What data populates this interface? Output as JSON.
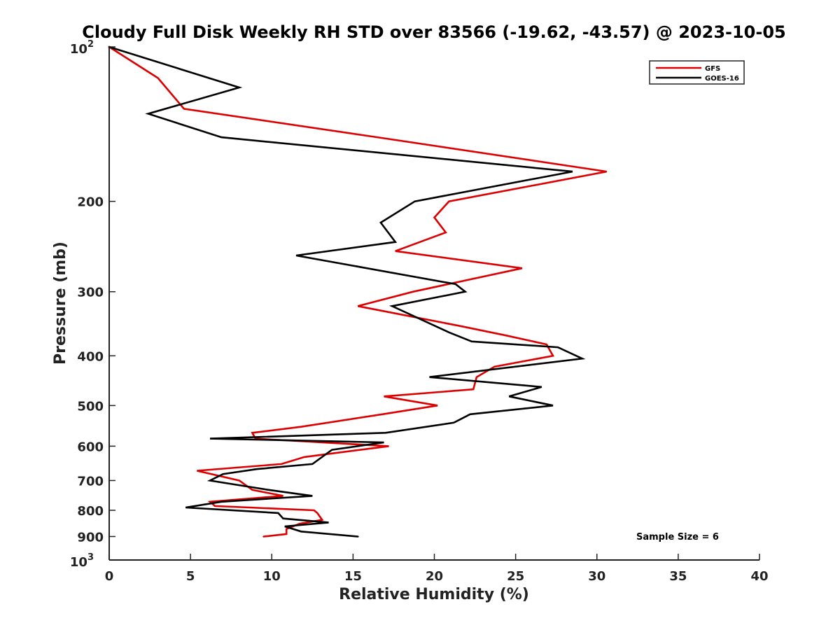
{
  "chart_data": {
    "type": "line",
    "title": "Cloudy Full Disk Weekly RH STD over 83566 (-19.62, -43.57) @ 2023-10-05",
    "xlabel": "Relative Humidity (%)",
    "ylabel": "Pressure (mb)",
    "xlim": [
      0,
      40
    ],
    "ylim": [
      100,
      1000
    ],
    "y_scale": "log",
    "y_reversed": true,
    "grid": false,
    "legend_position": "top-right",
    "x_ticks": [
      {
        "value": 0,
        "label": "0"
      },
      {
        "value": 5,
        "label": "5"
      },
      {
        "value": 10,
        "label": "10"
      },
      {
        "value": 15,
        "label": "15"
      },
      {
        "value": 20,
        "label": "20"
      },
      {
        "value": 25,
        "label": "25"
      },
      {
        "value": 30,
        "label": "30"
      },
      {
        "value": 35,
        "label": "35"
      },
      {
        "value": 40,
        "label": "40"
      }
    ],
    "y_ticks": [
      {
        "value": 100,
        "label": "",
        "base": "10",
        "exp": "2"
      },
      {
        "value": 200,
        "label": "200"
      },
      {
        "value": 300,
        "label": "300"
      },
      {
        "value": 400,
        "label": "400"
      },
      {
        "value": 500,
        "label": "500"
      },
      {
        "value": 600,
        "label": "600"
      },
      {
        "value": 700,
        "label": "700"
      },
      {
        "value": 800,
        "label": "800"
      },
      {
        "value": 900,
        "label": "900"
      },
      {
        "value": 1000,
        "label": "",
        "base": "10",
        "exp": "3"
      }
    ],
    "annotation": "Sample Size = 6",
    "series": [
      {
        "name": "GFS",
        "color": "#dd0000",
        "points": [
          [
            0,
            100
          ],
          [
            3.0,
            115
          ],
          [
            4.6,
            132
          ],
          [
            16.5,
            150
          ],
          [
            30.6,
            175
          ],
          [
            20.9,
            200
          ],
          [
            20.0,
            215
          ],
          [
            20.7,
            230
          ],
          [
            17.6,
            250
          ],
          [
            25.4,
            270
          ],
          [
            18.7,
            300
          ],
          [
            15.3,
            320
          ],
          [
            21.6,
            350
          ],
          [
            24.4,
            365
          ],
          [
            26.9,
            380
          ],
          [
            27.3,
            400
          ],
          [
            23.7,
            420
          ],
          [
            22.6,
            440
          ],
          [
            22.4,
            465
          ],
          [
            16.9,
            480
          ],
          [
            20.2,
            500
          ],
          [
            16.8,
            520
          ],
          [
            11.8,
            550
          ],
          [
            8.8,
            565
          ],
          [
            9.0,
            580
          ],
          [
            17.2,
            600
          ],
          [
            12.0,
            630
          ],
          [
            10.6,
            650
          ],
          [
            5.4,
            670
          ],
          [
            8.0,
            700
          ],
          [
            8.8,
            730
          ],
          [
            10.7,
            750
          ],
          [
            6.2,
            770
          ],
          [
            6.5,
            785
          ],
          [
            12.6,
            800
          ],
          [
            12.8,
            810
          ],
          [
            13.1,
            835
          ],
          [
            11.7,
            850
          ],
          [
            10.9,
            870
          ],
          [
            10.9,
            890
          ],
          [
            9.5,
            900
          ]
        ]
      },
      {
        "name": "GOES-16",
        "color": "#000000",
        "points": [
          [
            0,
            100
          ],
          [
            8.0,
            120
          ],
          [
            2.4,
            135
          ],
          [
            6.9,
            150
          ],
          [
            28.5,
            175
          ],
          [
            18.8,
            200
          ],
          [
            16.7,
            220
          ],
          [
            17.6,
            240
          ],
          [
            11.5,
            255
          ],
          [
            21.3,
            290
          ],
          [
            21.9,
            300
          ],
          [
            17.4,
            320
          ],
          [
            20.9,
            360
          ],
          [
            22.3,
            375
          ],
          [
            27.6,
            385
          ],
          [
            29.1,
            405
          ],
          [
            19.7,
            440
          ],
          [
            26.6,
            460
          ],
          [
            24.6,
            480
          ],
          [
            27.3,
            500
          ],
          [
            22.2,
            520
          ],
          [
            21.2,
            540
          ],
          [
            17.0,
            565
          ],
          [
            6.2,
            580
          ],
          [
            16.9,
            590
          ],
          [
            13.7,
            610
          ],
          [
            12.5,
            650
          ],
          [
            9.1,
            665
          ],
          [
            7.0,
            680
          ],
          [
            6.2,
            700
          ],
          [
            9.8,
            730
          ],
          [
            12.5,
            750
          ],
          [
            6.9,
            770
          ],
          [
            4.7,
            790
          ],
          [
            10.4,
            810
          ],
          [
            10.7,
            830
          ],
          [
            13.5,
            845
          ],
          [
            10.8,
            860
          ],
          [
            11.8,
            880
          ],
          [
            15.3,
            900
          ]
        ]
      }
    ]
  }
}
